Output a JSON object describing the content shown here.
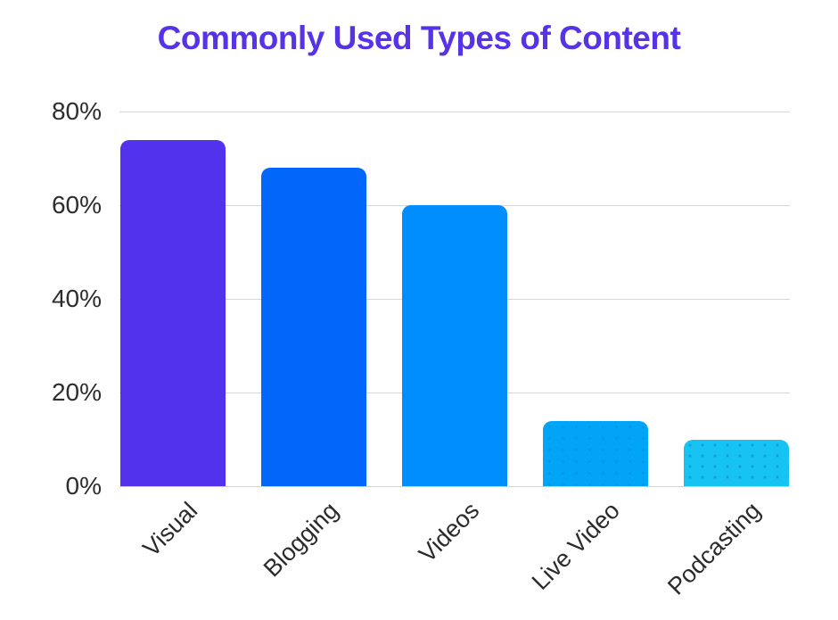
{
  "chart_data": {
    "type": "bar",
    "title": "Commonly Used Types of Content",
    "categories": [
      "Visual",
      "Blogging",
      "Videos",
      "Live Video",
      "Podcasting"
    ],
    "values": [
      74,
      68,
      60,
      14,
      10
    ],
    "unit": "%",
    "xlabel": "",
    "ylabel": "",
    "ylim": [
      0,
      80
    ],
    "yticks": [
      0,
      20,
      40,
      60,
      80
    ],
    "ytick_labels": [
      "0%",
      "20%",
      "40%",
      "60%",
      "80%"
    ],
    "grid": true,
    "legend": false,
    "x_label_rotation": -45,
    "bar_colors": [
      "#5232ec",
      "#0067fb",
      "#008dfd",
      "#00a5f7",
      "#17c3f3"
    ],
    "bar_textures": [
      "solid",
      "solid",
      "solid",
      "dots-subtle",
      "dots"
    ]
  },
  "colors": {
    "title": "#5733e7",
    "axis_text": "#2d2d2d",
    "gridline": "#d5d5d5",
    "background": "#ffffff"
  }
}
